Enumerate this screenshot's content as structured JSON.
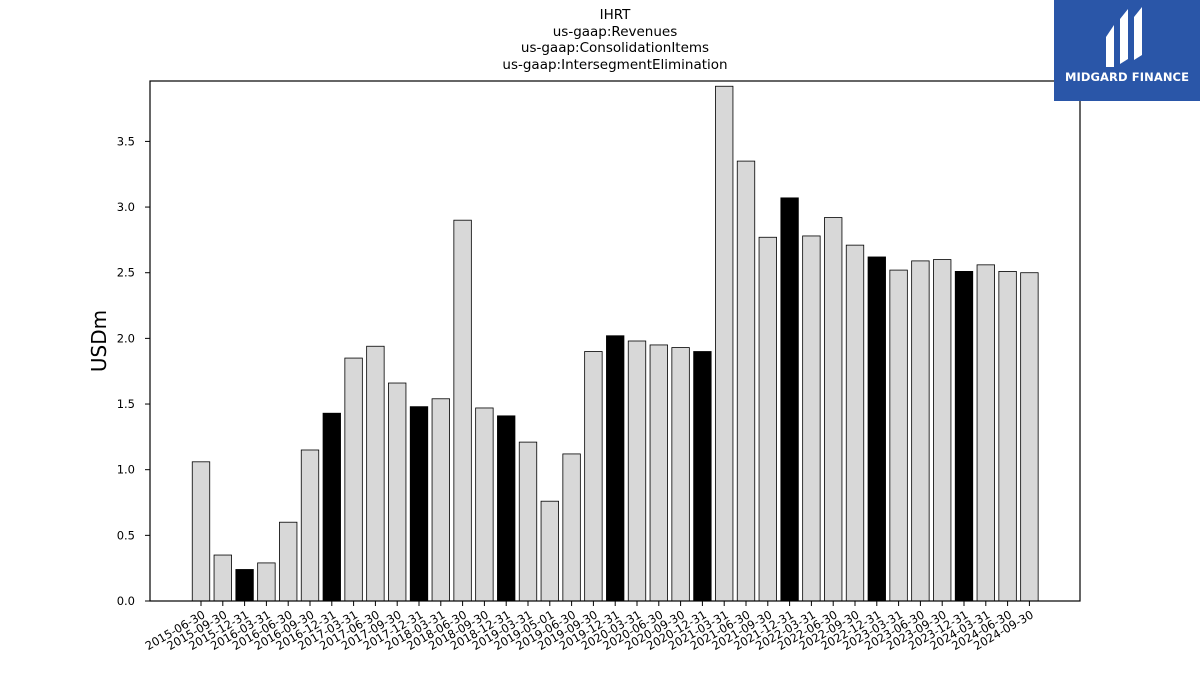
{
  "chart_data": {
    "type": "bar",
    "title_lines": [
      "IHRT",
      "us-gaap:Revenues",
      "us-gaap:ConsolidationItems",
      "us-gaap:IntersegmentElimination"
    ],
    "xlabel": "",
    "ylabel": "USDm",
    "ylim": [
      0,
      3.96
    ],
    "yticks": [
      "0.0",
      "0.5",
      "1.0",
      "1.5",
      "2.0",
      "2.5",
      "3.0",
      "3.5"
    ],
    "grid": false,
    "categories": [
      "2015-06-30",
      "2015-09-30",
      "2015-12-31",
      "2016-03-31",
      "2016-06-30",
      "2016-09-30",
      "2016-12-31",
      "2017-03-31",
      "2017-06-30",
      "2017-09-30",
      "2017-12-31",
      "2018-03-31",
      "2018-06-30",
      "2018-09-30",
      "2018-12-31",
      "2019-03-31",
      "2019-05-01",
      "2019-06-30",
      "2019-09-30",
      "2019-12-31",
      "2020-03-31",
      "2020-06-30",
      "2020-09-30",
      "2020-12-31",
      "2021-03-31",
      "2021-06-30",
      "2021-09-30",
      "2021-12-31",
      "2022-03-31",
      "2022-06-30",
      "2022-09-30",
      "2022-12-31",
      "2023-03-31",
      "2023-06-30",
      "2023-09-30",
      "2023-12-31",
      "2024-03-31",
      "2024-06-30",
      "2024-09-30"
    ],
    "values": [
      1.06,
      0.35,
      0.24,
      0.29,
      0.6,
      1.15,
      1.43,
      1.85,
      1.94,
      1.66,
      1.48,
      1.54,
      2.9,
      1.47,
      1.41,
      1.21,
      0.76,
      1.12,
      1.9,
      2.02,
      1.98,
      1.95,
      1.93,
      1.9,
      3.92,
      3.35,
      2.77,
      3.07,
      2.78,
      2.92,
      2.71,
      2.62,
      2.52,
      2.59,
      2.6,
      2.51,
      2.56,
      2.51,
      2.5
    ],
    "highlight_year_end": [
      false,
      false,
      true,
      false,
      false,
      false,
      true,
      false,
      false,
      false,
      true,
      false,
      false,
      false,
      true,
      false,
      false,
      false,
      false,
      true,
      false,
      false,
      false,
      true,
      false,
      false,
      false,
      true,
      false,
      false,
      false,
      true,
      false,
      false,
      false,
      true,
      false,
      false,
      false
    ],
    "colors": {
      "bar": "#d8d8d8",
      "bar_highlight": "#000000",
      "edge": "#000000"
    }
  },
  "logo": {
    "text": "MIDGARD FINANCE",
    "color": "#2a56a8"
  }
}
